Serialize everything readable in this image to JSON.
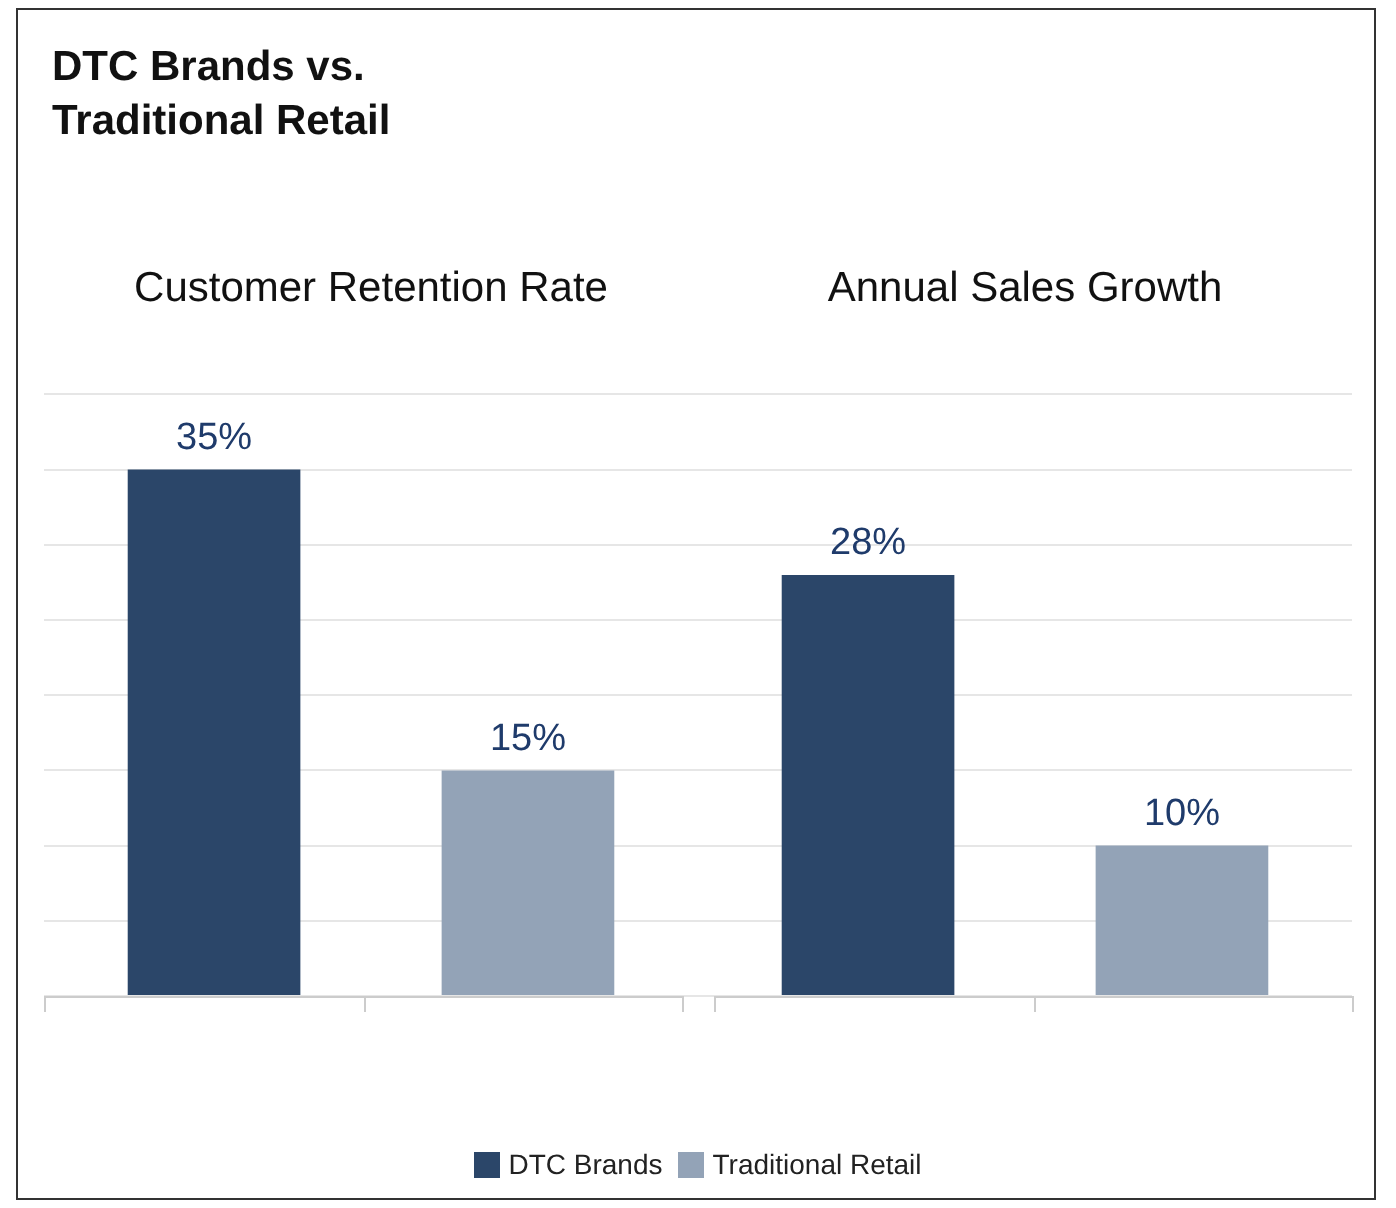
{
  "chart_data": {
    "type": "bar",
    "title": "DTC Brands vs. Traditional Retail",
    "categories": [
      "Customer Retention Rate",
      "Annual Sales Growth"
    ],
    "series": [
      {
        "name": "DTC Brands",
        "color": "#2b4669",
        "values": [
          35,
          28
        ],
        "value_labels": [
          "35%",
          "28%"
        ]
      },
      {
        "name": "Traditional Retail",
        "color": "#93a3b7",
        "values": [
          15,
          10
        ],
        "value_labels": [
          "15%",
          "10%"
        ]
      }
    ],
    "grid": "y",
    "tick_labels": "x",
    "legend": "bottom"
  }
}
